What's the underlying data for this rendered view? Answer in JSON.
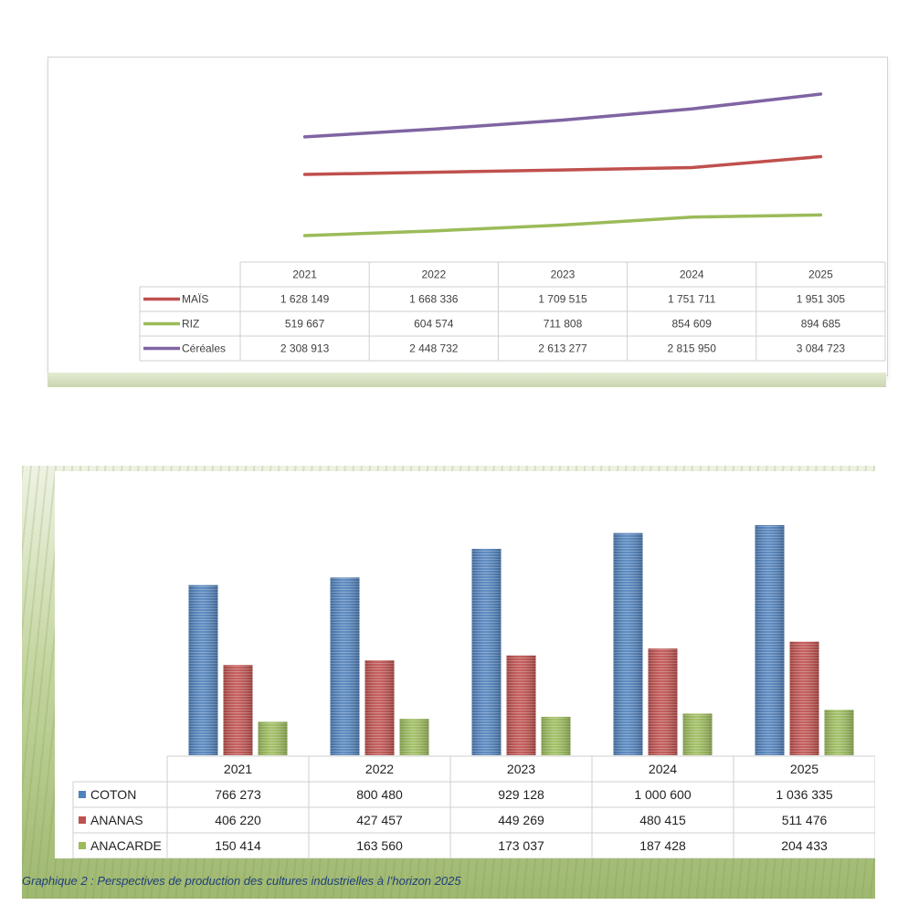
{
  "chart_data": [
    {
      "type": "line",
      "categories": [
        "2021",
        "2022",
        "2023",
        "2024",
        "2025"
      ],
      "series": [
        {
          "name": "MAÏS",
          "color": "#c0504d",
          "values": [
            1628149,
            1668336,
            1709515,
            1751711,
            1951305
          ],
          "labels": [
            "1 628 149",
            "1 668 336",
            "1 709 515",
            "1 751 711",
            "1 951 305"
          ]
        },
        {
          "name": "RIZ",
          "color": "#9bbb59",
          "values": [
            519667,
            604574,
            711808,
            854609,
            894685
          ],
          "labels": [
            "519 667",
            "604 574",
            "711 808",
            "854 609",
            "894 685"
          ]
        },
        {
          "name": "Céréales",
          "color": "#8064a2",
          "values": [
            2308913,
            2448732,
            2613277,
            2815950,
            3084723
          ],
          "labels": [
            "2 308 913",
            "2 448 732",
            "2 613 277",
            "2 815 950",
            "3 084 723"
          ]
        }
      ],
      "legend": "data-table",
      "grid": false
    },
    {
      "type": "bar",
      "categories": [
        "2021",
        "2022",
        "2023",
        "2024",
        "2025"
      ],
      "series": [
        {
          "name": "COTON",
          "color": "#4f81bd",
          "values": [
            766273,
            800480,
            929128,
            1000600,
            1036335
          ],
          "labels": [
            "766 273",
            "800 480",
            "929 128",
            "1 000 600",
            "1 036 335"
          ]
        },
        {
          "name": "ANANAS",
          "color": "#c0504d",
          "values": [
            406220,
            427457,
            449269,
            480415,
            511476
          ],
          "labels": [
            "406 220",
            "427 457",
            "449 269",
            "480 415",
            "511 476"
          ]
        },
        {
          "name": "ANACARDE",
          "color": "#9bbb59",
          "values": [
            150414,
            163560,
            173037,
            187428,
            204433
          ],
          "labels": [
            "150 414",
            "163 560",
            "173 037",
            "187 428",
            "204 433"
          ]
        }
      ],
      "legend": "data-table",
      "grid": false
    }
  ],
  "caption": "Graphique 2 : Perspectives de production des cultures industrielles à l’horizon 2025"
}
